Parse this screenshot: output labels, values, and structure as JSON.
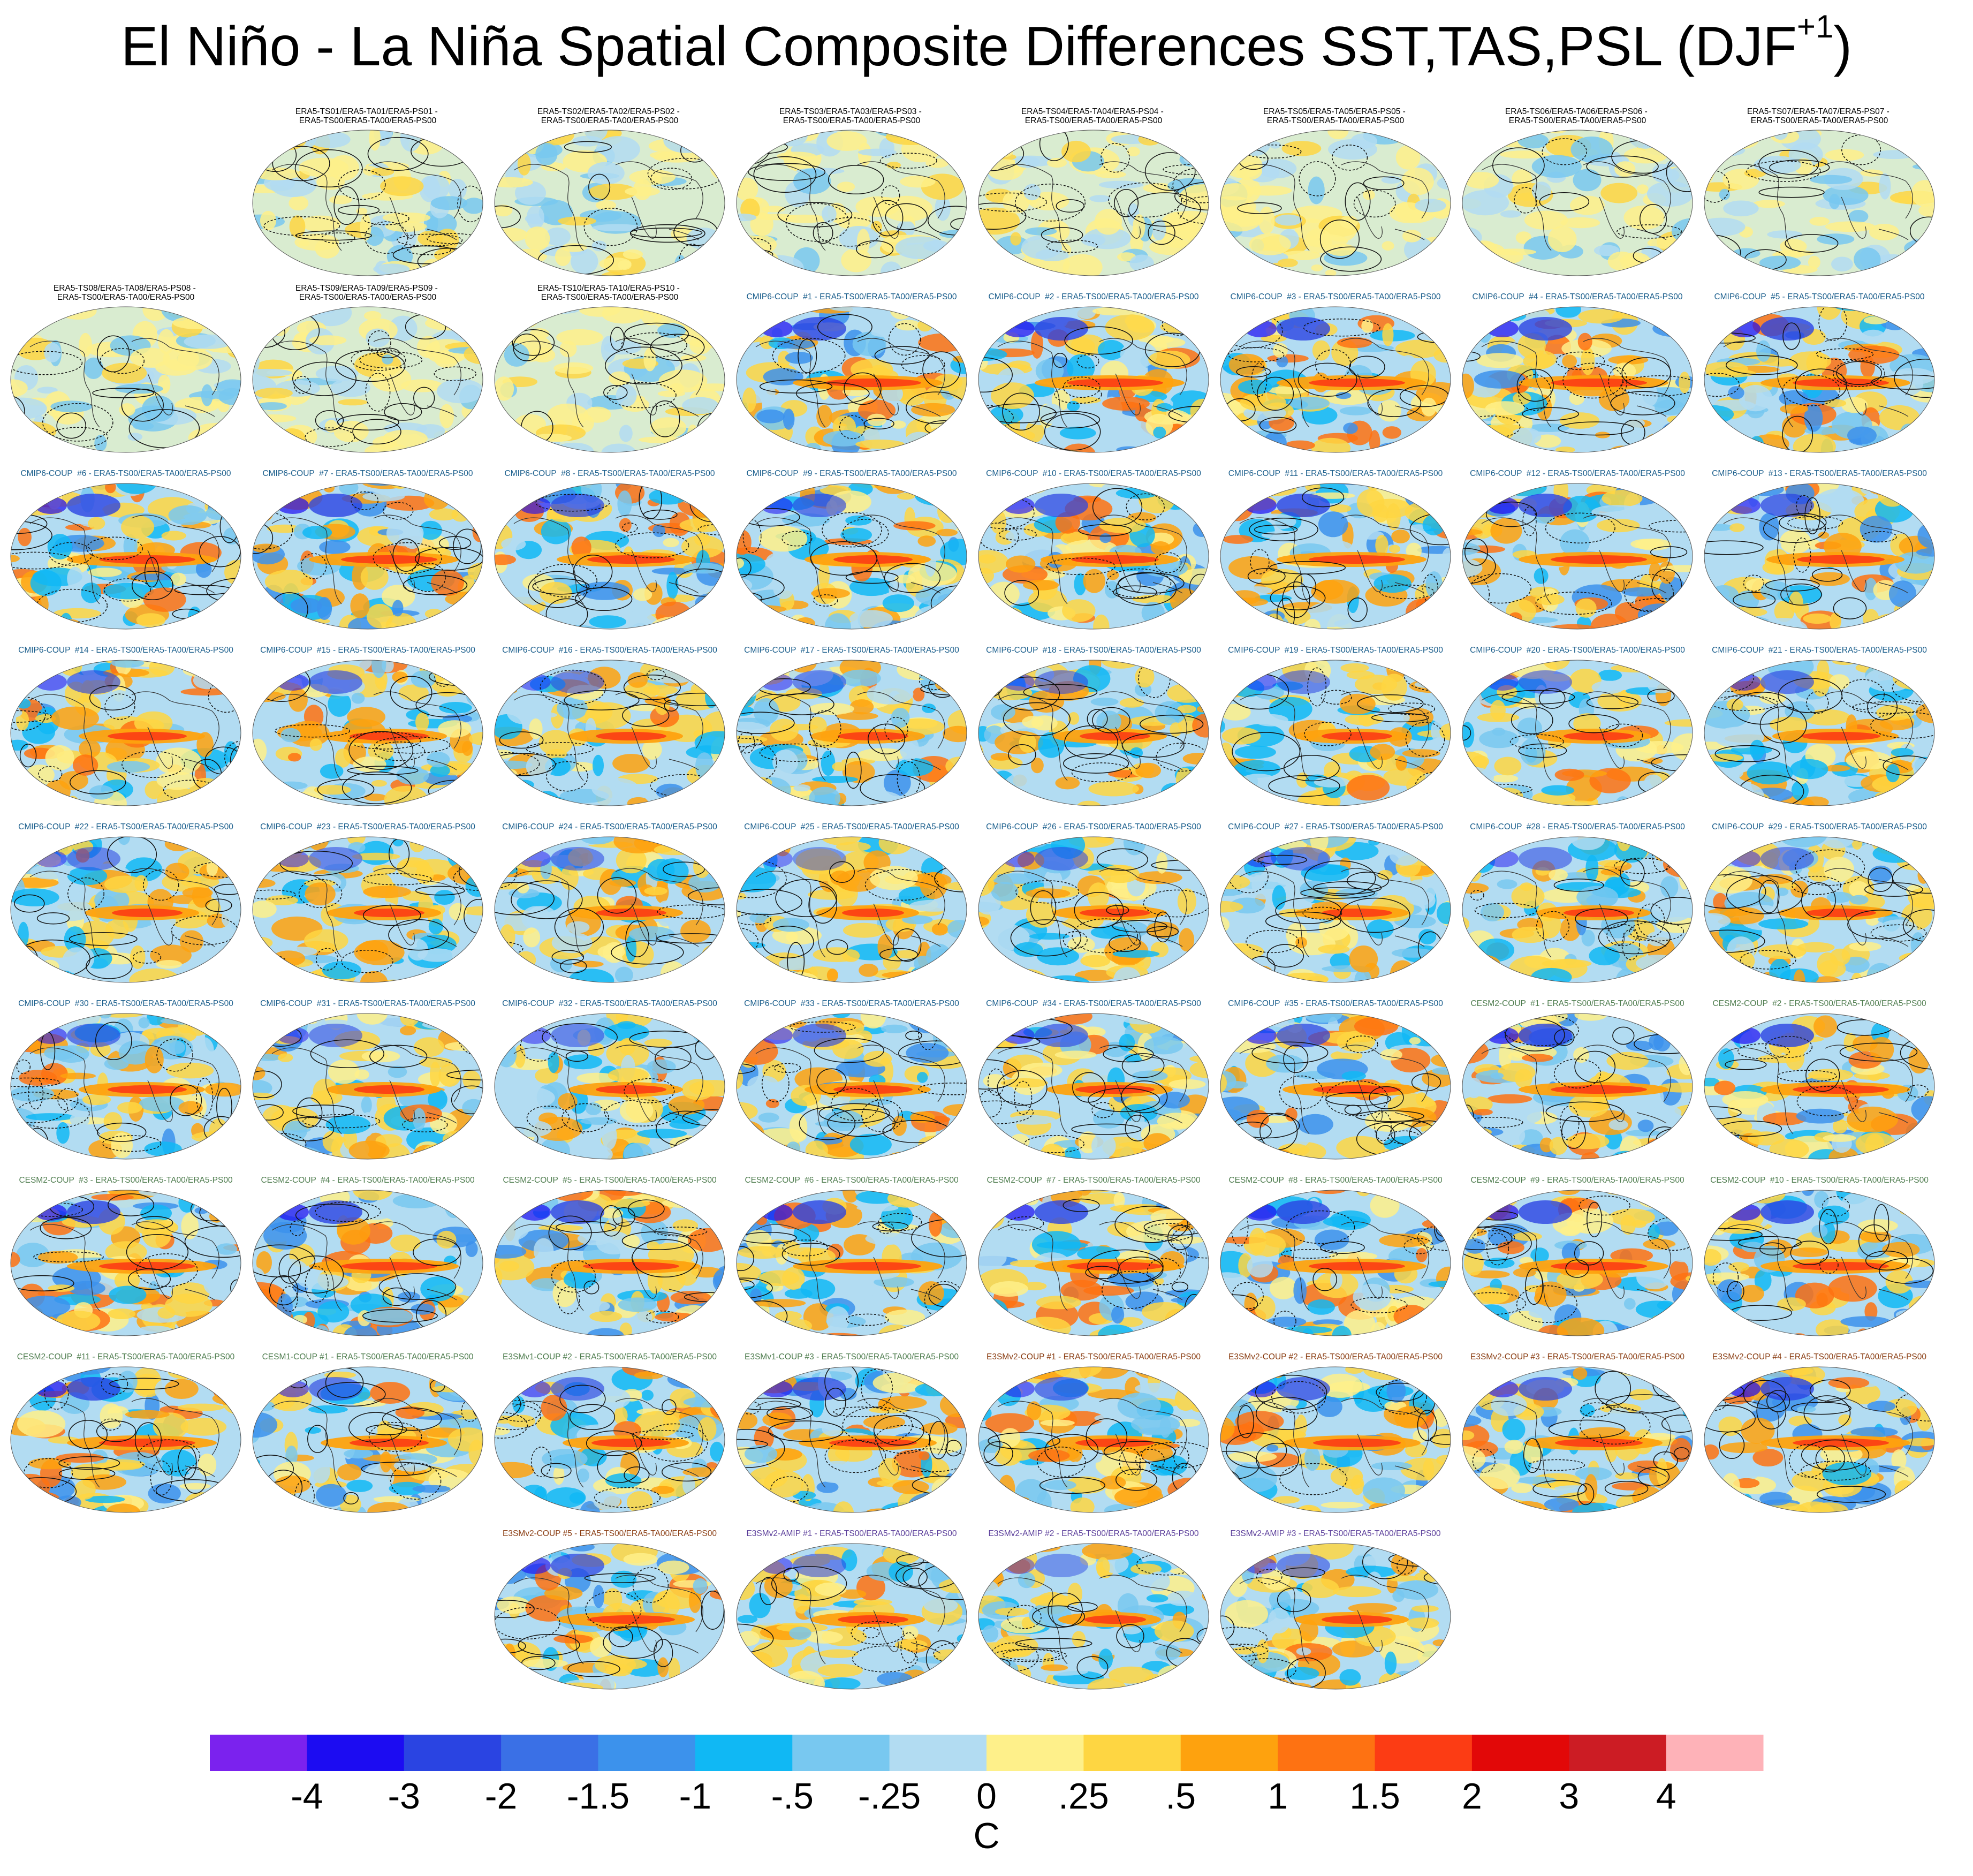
{
  "title": "El Niño - La Niña Spatial Composite Differences SST,TAS,PSL (DJF",
  "title_sup": "+1",
  "title_close": ")",
  "chart_data": {
    "type": "map-panel-grid",
    "projection": "Robinson",
    "variables": [
      "SST",
      "TAS",
      "PSL"
    ],
    "season": "DJF+1",
    "shading_units": "C",
    "contours": "PSL composite difference (solid positive, dashed negative)",
    "colorbar": {
      "levels": [
        "-4",
        "-3",
        "-2",
        "-1.5",
        "-1",
        "-.5",
        "-.25",
        "0",
        ".25",
        ".5",
        "1",
        "1.5",
        "2",
        "3",
        "4"
      ],
      "colors": [
        "#7b22ee",
        "#1c0cf2",
        "#2a44e2",
        "#3a70e6",
        "#3c92ec",
        "#10b8f4",
        "#78c8f0",
        "#b2dcf2",
        "#fef08a",
        "#fed642",
        "#fea20e",
        "#fe7212",
        "#fc3c14",
        "#e20808",
        "#cc1c24",
        "#feb2b8"
      ],
      "units": "C"
    },
    "panels": [
      {
        "label": "ERA5-TS01/ERA5-TA01/ERA5-PS01 - \nERA5-TS00/ERA5-TA00/ERA5-PS00",
        "group": "obs",
        "row": 0,
        "col": 1,
        "intensity": 0.15,
        "contour_density": 0.9
      },
      {
        "label": "ERA5-TS02/ERA5-TA02/ERA5-PS02 - \nERA5-TS00/ERA5-TA00/ERA5-PS00",
        "group": "obs",
        "row": 0,
        "col": 2,
        "intensity": 0.25,
        "contour_density": 0.4
      },
      {
        "label": "ERA5-TS03/ERA5-TA03/ERA5-PS03 - \nERA5-TS00/ERA5-TA00/ERA5-PS00",
        "group": "obs",
        "row": 0,
        "col": 3,
        "intensity": 0.15,
        "contour_density": 0.9
      },
      {
        "label": "ERA5-TS04/ERA5-TA04/ERA5-PS04 - \nERA5-TS00/ERA5-TA00/ERA5-PS00",
        "group": "obs",
        "row": 0,
        "col": 4,
        "intensity": 0.15,
        "contour_density": 0.9
      },
      {
        "label": "ERA5-TS05/ERA5-TA05/ERA5-PS05 - \nERA5-TS00/ERA5-TA00/ERA5-PS00",
        "group": "obs",
        "row": 0,
        "col": 5,
        "intensity": 0.3,
        "contour_density": 0.3
      },
      {
        "label": "ERA5-TS06/ERA5-TA06/ERA5-PS06 - \nERA5-TS00/ERA5-TA00/ERA5-PS00",
        "group": "obs",
        "row": 0,
        "col": 6,
        "intensity": 0.3,
        "contour_density": 0.3
      },
      {
        "label": "ERA5-TS07/ERA5-TA07/ERA5-PS07 - \nERA5-TS00/ERA5-TA00/ERA5-PS00",
        "group": "obs",
        "row": 0,
        "col": 7,
        "intensity": 0.3,
        "contour_density": 0.3
      },
      {
        "label": "ERA5-TS08/ERA5-TA08/ERA5-PS08 - \nERA5-TS00/ERA5-TA00/ERA5-PS00",
        "group": "obs",
        "row": 1,
        "col": 0,
        "intensity": 0.25,
        "contour_density": 0.3
      },
      {
        "label": "ERA5-TS09/ERA5-TA09/ERA5-PS09 - \nERA5-TS00/ERA5-TA00/ERA5-PS00",
        "group": "obs",
        "row": 1,
        "col": 1,
        "intensity": 0.15,
        "contour_density": 0.9
      },
      {
        "label": "ERA5-TS10/ERA5-TA10/ERA5-PS10 - \nERA5-TS00/ERA5-TA00/ERA5-PS00",
        "group": "obs",
        "row": 1,
        "col": 2,
        "intensity": 0.25,
        "contour_density": 0.4
      },
      {
        "label": "CMIP6-COUP  #1 - ERA5-TS00/ERA5-TA00/ERA5-PS00",
        "group": "cmip6",
        "row": 1,
        "col": 3,
        "intensity": 1.0,
        "contour_density": 0.6
      },
      {
        "label": "CMIP6-COUP  #2 - ERA5-TS00/ERA5-TA00/ERA5-PS00",
        "group": "cmip6",
        "row": 1,
        "col": 4,
        "intensity": 1.0,
        "contour_density": 0.6
      },
      {
        "label": "CMIP6-COUP  #3 - ERA5-TS00/ERA5-TA00/ERA5-PS00",
        "group": "cmip6",
        "row": 1,
        "col": 5,
        "intensity": 1.0,
        "contour_density": 0.6
      },
      {
        "label": "CMIP6-COUP  #4 - ERA5-TS00/ERA5-TA00/ERA5-PS00",
        "group": "cmip6",
        "row": 1,
        "col": 6,
        "intensity": 1.0,
        "contour_density": 0.6
      },
      {
        "label": "CMIP6-COUP  #5 - ERA5-TS00/ERA5-TA00/ERA5-PS00",
        "group": "cmip6",
        "row": 1,
        "col": 7,
        "intensity": 1.0,
        "contour_density": 0.6
      },
      {
        "label": "CMIP6-COUP  #6 - ERA5-TS00/ERA5-TA00/ERA5-PS00",
        "group": "cmip6",
        "row": 2,
        "col": 0,
        "intensity": 1.0,
        "contour_density": 0.6
      },
      {
        "label": "CMIP6-COUP  #7 - ERA5-TS00/ERA5-TA00/ERA5-PS00",
        "group": "cmip6",
        "row": 2,
        "col": 1,
        "intensity": 1.0,
        "contour_density": 0.6
      },
      {
        "label": "CMIP6-COUP  #8 - ERA5-TS00/ERA5-TA00/ERA5-PS00",
        "group": "cmip6",
        "row": 2,
        "col": 2,
        "intensity": 0.9,
        "contour_density": 0.6
      },
      {
        "label": "CMIP6-COUP  #9 - ERA5-TS00/ERA5-TA00/ERA5-PS00",
        "group": "cmip6",
        "row": 2,
        "col": 3,
        "intensity": 0.8,
        "contour_density": 0.6
      },
      {
        "label": "CMIP6-COUP  #10 - ERA5-TS00/ERA5-TA00/ERA5-PS00",
        "group": "cmip6",
        "row": 2,
        "col": 4,
        "intensity": 0.9,
        "contour_density": 0.6
      },
      {
        "label": "CMIP6-COUP  #11 - ERA5-TS00/ERA5-TA00/ERA5-PS00",
        "group": "cmip6",
        "row": 2,
        "col": 5,
        "intensity": 1.0,
        "contour_density": 0.6
      },
      {
        "label": "CMIP6-COUP  #12 - ERA5-TS00/ERA5-TA00/ERA5-PS00",
        "group": "cmip6",
        "row": 2,
        "col": 6,
        "intensity": 1.0,
        "contour_density": 0.6
      },
      {
        "label": "CMIP6-COUP  #13 - ERA5-TS00/ERA5-TA00/ERA5-PS00",
        "group": "cmip6",
        "row": 2,
        "col": 7,
        "intensity": 0.9,
        "contour_density": 0.6
      },
      {
        "label": "CMIP6-COUP  #14 - ERA5-TS00/ERA5-TA00/ERA5-PS00",
        "group": "cmip6",
        "row": 3,
        "col": 0,
        "intensity": 0.8,
        "contour_density": 0.6
      },
      {
        "label": "CMIP6-COUP  #15 - ERA5-TS00/ERA5-TA00/ERA5-PS00",
        "group": "cmip6",
        "row": 3,
        "col": 1,
        "intensity": 0.8,
        "contour_density": 0.6
      },
      {
        "label": "CMIP6-COUP  #16 - ERA5-TS00/ERA5-TA00/ERA5-PS00",
        "group": "cmip6",
        "row": 3,
        "col": 2,
        "intensity": 0.7,
        "contour_density": 0.6
      },
      {
        "label": "CMIP6-COUP  #17 - ERA5-TS00/ERA5-TA00/ERA5-PS00",
        "group": "cmip6",
        "row": 3,
        "col": 3,
        "intensity": 0.7,
        "contour_density": 0.7
      },
      {
        "label": "CMIP6-COUP  #18 - ERA5-TS00/ERA5-TA00/ERA5-PS00",
        "group": "cmip6",
        "row": 3,
        "col": 4,
        "intensity": 0.7,
        "contour_density": 0.6
      },
      {
        "label": "CMIP6-COUP  #19 - ERA5-TS00/ERA5-TA00/ERA5-PS00",
        "group": "cmip6",
        "row": 3,
        "col": 5,
        "intensity": 0.7,
        "contour_density": 0.6
      },
      {
        "label": "CMIP6-COUP  #20 - ERA5-TS00/ERA5-TA00/ERA5-PS00",
        "group": "cmip6",
        "row": 3,
        "col": 6,
        "intensity": 0.7,
        "contour_density": 0.6
      },
      {
        "label": "CMIP6-COUP  #21 - ERA5-TS00/ERA5-TA00/ERA5-PS00",
        "group": "cmip6",
        "row": 3,
        "col": 7,
        "intensity": 0.8,
        "contour_density": 0.6
      },
      {
        "label": "CMIP6-COUP  #22 - ERA5-TS00/ERA5-TA00/ERA5-PS00",
        "group": "cmip6",
        "row": 4,
        "col": 0,
        "intensity": 0.7,
        "contour_density": 0.6
      },
      {
        "label": "CMIP6-COUP  #23 - ERA5-TS00/ERA5-TA00/ERA5-PS00",
        "group": "cmip6",
        "row": 4,
        "col": 1,
        "intensity": 0.7,
        "contour_density": 0.6
      },
      {
        "label": "CMIP6-COUP  #24 - ERA5-TS00/ERA5-TA00/ERA5-PS00",
        "group": "cmip6",
        "row": 4,
        "col": 2,
        "intensity": 0.7,
        "contour_density": 0.6
      },
      {
        "label": "CMIP6-COUP  #25 - ERA5-TS00/ERA5-TA00/ERA5-PS00",
        "group": "cmip6",
        "row": 4,
        "col": 3,
        "intensity": 0.6,
        "contour_density": 0.6
      },
      {
        "label": "CMIP6-COUP  #26 - ERA5-TS00/ERA5-TA00/ERA5-PS00",
        "group": "cmip6",
        "row": 4,
        "col": 4,
        "intensity": 0.7,
        "contour_density": 0.6
      },
      {
        "label": "CMIP6-COUP  #27 - ERA5-TS00/ERA5-TA00/ERA5-PS00",
        "group": "cmip6",
        "row": 4,
        "col": 5,
        "intensity": 0.7,
        "contour_density": 0.6
      },
      {
        "label": "CMIP6-COUP  #28 - ERA5-TS00/ERA5-TA00/ERA5-PS00",
        "group": "cmip6",
        "row": 4,
        "col": 6,
        "intensity": 0.7,
        "contour_density": 0.6
      },
      {
        "label": "CMIP6-COUP  #29 - ERA5-TS00/ERA5-TA00/ERA5-PS00",
        "group": "cmip6",
        "row": 4,
        "col": 7,
        "intensity": 0.7,
        "contour_density": 0.6
      },
      {
        "label": "CMIP6-COUP  #30 - ERA5-TS00/ERA5-TA00/ERA5-PS00",
        "group": "cmip6",
        "row": 5,
        "col": 0,
        "intensity": 0.8,
        "contour_density": 0.7
      },
      {
        "label": "CMIP6-COUP  #31 - ERA5-TS00/ERA5-TA00/ERA5-PS00",
        "group": "cmip6",
        "row": 5,
        "col": 1,
        "intensity": 0.7,
        "contour_density": 0.6
      },
      {
        "label": "CMIP6-COUP  #32 - ERA5-TS00/ERA5-TA00/ERA5-PS00",
        "group": "cmip6",
        "row": 5,
        "col": 2,
        "intensity": 0.7,
        "contour_density": 0.6
      },
      {
        "label": "CMIP6-COUP  #33 - ERA5-TS00/ERA5-TA00/ERA5-PS00",
        "group": "cmip6",
        "row": 5,
        "col": 3,
        "intensity": 0.8,
        "contour_density": 0.7
      },
      {
        "label": "CMIP6-COUP  #34 - ERA5-TS00/ERA5-TA00/ERA5-PS00",
        "group": "cmip6",
        "row": 5,
        "col": 4,
        "intensity": 0.8,
        "contour_density": 0.8
      },
      {
        "label": "CMIP6-COUP  #35 - ERA5-TS00/ERA5-TA00/ERA5-PS00",
        "group": "cmip6",
        "row": 5,
        "col": 5,
        "intensity": 0.9,
        "contour_density": 0.9
      },
      {
        "label": "CESM2-COUP  #1 - ERA5-TS00/ERA5-TA00/ERA5-PS00",
        "group": "cesm2",
        "row": 5,
        "col": 6,
        "intensity": 1.0,
        "contour_density": 0.6
      },
      {
        "label": "CESM2-COUP  #2 - ERA5-TS00/ERA5-TA00/ERA5-PS00",
        "group": "cesm2",
        "row": 5,
        "col": 7,
        "intensity": 1.0,
        "contour_density": 0.6
      },
      {
        "label": "CESM2-COUP  #3 - ERA5-TS00/ERA5-TA00/ERA5-PS00",
        "group": "cesm2",
        "row": 6,
        "col": 0,
        "intensity": 1.0,
        "contour_density": 0.6
      },
      {
        "label": "CESM2-COUP  #4 - ERA5-TS00/ERA5-TA00/ERA5-PS00",
        "group": "cesm2",
        "row": 6,
        "col": 1,
        "intensity": 1.0,
        "contour_density": 0.6
      },
      {
        "label": "CESM2-COUP  #5 - ERA5-TS00/ERA5-TA00/ERA5-PS00",
        "group": "cesm2",
        "row": 6,
        "col": 2,
        "intensity": 1.0,
        "contour_density": 0.6
      },
      {
        "label": "CESM2-COUP  #6 - ERA5-TS00/ERA5-TA00/ERA5-PS00",
        "group": "cesm2",
        "row": 6,
        "col": 3,
        "intensity": 1.0,
        "contour_density": 0.6
      },
      {
        "label": "CESM2-COUP  #7 - ERA5-TS00/ERA5-TA00/ERA5-PS00",
        "group": "cesm2",
        "row": 6,
        "col": 4,
        "intensity": 1.0,
        "contour_density": 0.6
      },
      {
        "label": "CESM2-COUP  #8 - ERA5-TS00/ERA5-TA00/ERA5-PS00",
        "group": "cesm2",
        "row": 6,
        "col": 5,
        "intensity": 1.0,
        "contour_density": 0.6
      },
      {
        "label": "CESM2-COUP  #9 - ERA5-TS00/ERA5-TA00/ERA5-PS00",
        "group": "cesm2",
        "row": 6,
        "col": 6,
        "intensity": 1.0,
        "contour_density": 0.6
      },
      {
        "label": "CESM2-COUP  #10 - ERA5-TS00/ERA5-TA00/ERA5-PS00",
        "group": "cesm2",
        "row": 6,
        "col": 7,
        "intensity": 1.0,
        "contour_density": 0.6
      },
      {
        "label": "CESM2-COUP  #11 - ERA5-TS00/ERA5-TA00/ERA5-PS00",
        "group": "cesm2",
        "row": 7,
        "col": 0,
        "intensity": 1.0,
        "contour_density": 0.7
      },
      {
        "label": "CESM1-COUP #1 - ERA5-TS00/ERA5-TA00/ERA5-PS00",
        "group": "cesm1",
        "row": 7,
        "col": 1,
        "intensity": 0.8,
        "contour_density": 0.8
      },
      {
        "label": "E3SMv1-COUP #2 - ERA5-TS00/ERA5-TA00/ERA5-PS00",
        "group": "cesm1",
        "row": 7,
        "col": 2,
        "intensity": 0.8,
        "contour_density": 0.8
      },
      {
        "label": "E3SMv1-COUP #3 - ERA5-TS00/ERA5-TA00/ERA5-PS00",
        "group": "cesm1",
        "row": 7,
        "col": 3,
        "intensity": 0.9,
        "contour_density": 0.9
      },
      {
        "label": "E3SMv2-COUP #1 - ERA5-TS00/ERA5-TA00/ERA5-PS00",
        "group": "e3sm",
        "row": 7,
        "col": 4,
        "intensity": 0.8,
        "contour_density": 0.6
      },
      {
        "label": "E3SMv2-COUP #2 - ERA5-TS00/ERA5-TA00/ERA5-PS00",
        "group": "e3sm",
        "row": 7,
        "col": 5,
        "intensity": 0.9,
        "contour_density": 0.6
      },
      {
        "label": "E3SMv2-COUP #3 - ERA5-TS00/ERA5-TA00/ERA5-PS00",
        "group": "e3sm",
        "row": 7,
        "col": 6,
        "intensity": 0.9,
        "contour_density": 0.7
      },
      {
        "label": "E3SMv2-COUP #4 - ERA5-TS00/ERA5-TA00/ERA5-PS00",
        "group": "e3sm",
        "row": 7,
        "col": 7,
        "intensity": 1.0,
        "contour_density": 0.7
      },
      {
        "label": "E3SMv2-COUP #5 - ERA5-TS00/ERA5-TA00/ERA5-PS00",
        "group": "e3sm",
        "row": 8,
        "col": 2,
        "intensity": 0.9,
        "contour_density": 0.6
      },
      {
        "label": "E3SMv2-AMIP #1 - ERA5-TS00/ERA5-TA00/ERA5-PS00",
        "group": "amip",
        "row": 8,
        "col": 3,
        "intensity": 0.7,
        "contour_density": 0.6
      },
      {
        "label": "E3SMv2-AMIP #2 - ERA5-TS00/ERA5-TA00/ERA5-PS00",
        "group": "amip",
        "row": 8,
        "col": 4,
        "intensity": 0.6,
        "contour_density": 0.6
      },
      {
        "label": "E3SMv2-AMIP #3 - ERA5-TS00/ERA5-TA00/ERA5-PS00",
        "group": "amip",
        "row": 8,
        "col": 5,
        "intensity": 0.7,
        "contour_density": 0.6
      }
    ]
  }
}
